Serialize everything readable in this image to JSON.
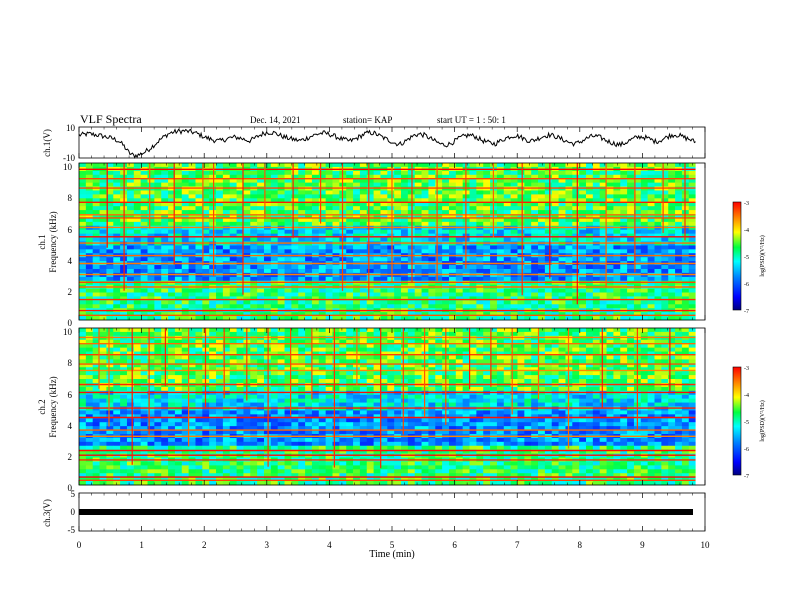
{
  "header": {
    "title": "VLF Spectra",
    "date": "Dec. 14, 2021",
    "station": "station= KAP",
    "start": "start  UT =   1 : 50: 1"
  },
  "chart_data": [
    {
      "type": "line",
      "panel": "ch1",
      "ylabel": "ch.1(V)",
      "ylim": [
        -10,
        10
      ],
      "y_ticks": [
        "10",
        "-10"
      ],
      "xlim": [
        0,
        10
      ],
      "series": [
        {
          "values": [
            4.8,
            5.2,
            5.6,
            5.1,
            4.6,
            3.9,
            3.2,
            2.2,
            0.8,
            -2.4,
            -6.8,
            -8.6,
            -7.9,
            -6.4,
            -4.2,
            -1.5,
            1.3,
            3.8,
            5.9,
            6.8,
            7.2,
            7.5,
            7.0,
            6.4,
            5.1,
            3.6,
            2.4,
            1.5,
            0.9,
            1.8,
            2.9,
            3.4,
            3.0,
            2.0,
            1.1,
            2.6,
            4.6,
            6.1,
            6.6,
            6.2,
            4.8,
            3.4,
            2.6,
            1.9,
            1.2,
            2.1,
            3.6,
            4.9,
            5.8,
            6.1,
            5.3,
            4.1,
            2.8,
            1.7,
            0.9,
            2.1,
            3.8,
            5.6,
            6.4,
            5.9,
            4.3,
            2.6,
            1.2,
            -0.4,
            -1.1,
            0.6,
            2.9,
            4.9,
            5.4,
            4.6,
            2.8,
            0.9,
            -0.8,
            -1.6,
            -0.9,
            1.1,
            3.0,
            4.3,
            4.8,
            3.9,
            2.0,
            0.6,
            -0.4,
            -0.8,
            0.9,
            2.6,
            3.9,
            4.6,
            3.7,
            2.1,
            0.9,
            1.8,
            3.2,
            4.4,
            4.9,
            4.0,
            2.6,
            1.2,
            -0.2,
            -0.9,
            0.4,
            2.2,
            3.7,
            4.2,
            3.2,
            1.6,
            0.2,
            -0.9,
            -1.5,
            -0.2,
            1.6,
            3.0,
            3.8,
            3.2,
            2.0,
            0.6,
            1.4,
            3.1,
            4.6,
            5.1,
            4.2,
            2.9,
            1.8,
            0.2
          ]
        }
      ]
    },
    {
      "type": "heatmap",
      "panel": "ch1",
      "ylabel": "ch.1",
      "ylabel2": "Frequency (kHz)",
      "ylim": [
        0,
        10
      ],
      "xlim": [
        0,
        10
      ],
      "y_ticks": [
        "0",
        "2",
        "4",
        "6",
        "8",
        "10"
      ],
      "colorbar": {
        "label": "log(PSD)(V²/Hz)",
        "ticks": [
          "-3",
          "-4",
          "-5",
          "-6",
          "-7"
        ],
        "range": [
          -7,
          -3
        ]
      },
      "lines_khz": [
        0.3,
        0.6,
        1.3,
        2.1,
        2.4,
        2.9,
        3.6,
        4.1,
        4.9,
        5.3,
        5.9,
        6.5,
        6.7,
        7.5,
        8.4,
        9.0,
        9.6
      ],
      "bursts_min": [
        0.45,
        0.72,
        1.13,
        1.52,
        1.98,
        2.15,
        2.62,
        2.97,
        3.42,
        3.86,
        4.21,
        4.63,
        5.0,
        5.32,
        5.72,
        6.18,
        6.62,
        7.08,
        7.52,
        7.96,
        8.42,
        8.88,
        9.33,
        9.68
      ]
    },
    {
      "type": "heatmap",
      "panel": "ch2",
      "ylabel": "ch.2",
      "ylabel2": "Frequency (kHz)",
      "ylim": [
        0,
        10
      ],
      "xlim": [
        0,
        10
      ],
      "y_ticks": [
        "0",
        "2",
        "4",
        "6",
        "8",
        "10"
      ],
      "colorbar": {
        "label": "log(PSD)(V²/Hz)",
        "ticks": [
          "-3",
          "-4",
          "-5",
          "-6",
          "-7"
        ],
        "range": [
          -7,
          -3
        ]
      },
      "lines_khz": [
        0.3,
        0.5,
        1.6,
        1.9,
        2.2,
        3.1,
        3.5,
        4.3,
        4.9,
        5.9,
        6.4,
        7.3,
        7.7,
        8.3,
        9.0,
        9.4
      ],
      "bursts_min": [
        0.32,
        0.48,
        0.85,
        1.12,
        1.38,
        1.75,
        2.02,
        2.32,
        2.68,
        3.02,
        3.38,
        3.72,
        4.08,
        4.44,
        4.82,
        5.18,
        5.52,
        5.86,
        6.24,
        6.58,
        6.92,
        7.34,
        7.82,
        8.36,
        8.92,
        9.44
      ]
    },
    {
      "type": "line",
      "panel": "ch3",
      "ylabel": "ch.3(V)",
      "ylim": [
        -5,
        5
      ],
      "y_ticks": [
        "5",
        "0",
        "-5"
      ],
      "xlim": [
        0,
        10
      ],
      "series": [
        {
          "values": [
            0,
            0
          ]
        }
      ]
    }
  ],
  "xaxis": {
    "label": "Time (min)",
    "ticks": [
      "0",
      "1",
      "2",
      "3",
      "4",
      "5",
      "6",
      "7",
      "8",
      "9",
      "10"
    ]
  },
  "colors": {
    "colormap": [
      "#0000ff",
      "#0080ff",
      "#00ffff",
      "#00ff80",
      "#80ff00",
      "#ffff00",
      "#ff8000",
      "#ff0000"
    ],
    "line": "#000000"
  }
}
